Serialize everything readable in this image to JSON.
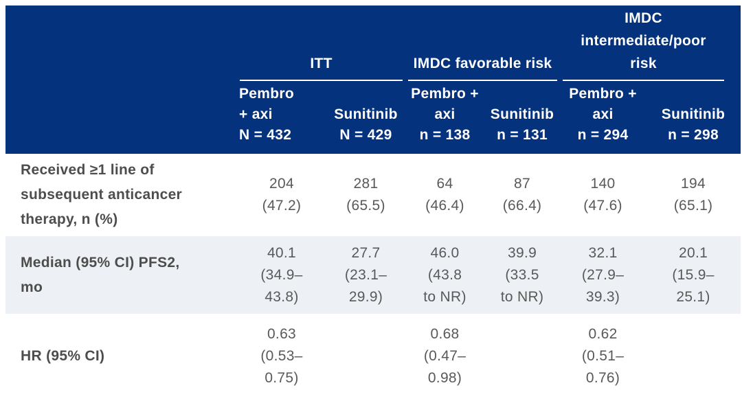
{
  "table": {
    "header": {
      "groups": [
        {
          "lines": [
            "ITT"
          ]
        },
        {
          "lines": [
            "IMDC favorable risk"
          ]
        },
        {
          "lines": [
            "IMDC",
            "intermediate/poor",
            "risk"
          ]
        }
      ],
      "columns": [
        {
          "lines": [
            "Pembro",
            "+ axi",
            "N = 432"
          ],
          "align": "left"
        },
        {
          "lines": [
            "Sunitinib",
            "N = 429"
          ],
          "align": "center"
        },
        {
          "lines": [
            "Pembro +",
            "axi",
            "n = 138"
          ],
          "align": "center"
        },
        {
          "lines": [
            "Sunitinib",
            "n = 131"
          ],
          "align": "center"
        },
        {
          "lines": [
            "Pembro +",
            "axi",
            "n = 294"
          ],
          "align": "center"
        },
        {
          "lines": [
            "Sunitinib",
            "n = 298"
          ],
          "align": "center"
        }
      ]
    },
    "rows": [
      {
        "label_lines": [
          "Received ≥1 line of",
          "subsequent anticancer",
          "therapy, n (%)"
        ],
        "shaded": false,
        "cells": [
          [
            "204",
            "(47.2)"
          ],
          [
            "281",
            "(65.5)"
          ],
          [
            "64",
            "(46.4)"
          ],
          [
            "87",
            "(66.4)"
          ],
          [
            "140",
            "(47.6)"
          ],
          [
            "194",
            "(65.1)"
          ]
        ]
      },
      {
        "label_lines": [
          "Median (95% CI) PFS2,",
          "mo"
        ],
        "shaded": true,
        "cells": [
          [
            "40.1",
            "(34.9–",
            "43.8)"
          ],
          [
            "27.7",
            "(23.1–",
            "29.9)"
          ],
          [
            "46.0",
            "(43.8",
            "to NR)"
          ],
          [
            "39.9",
            "(33.5",
            "to NR)"
          ],
          [
            "32.1",
            "(27.9–",
            "39.3)"
          ],
          [
            "20.1",
            "(15.9–",
            "25.1)"
          ]
        ]
      },
      {
        "label_lines": [
          "HR (95% CI)"
        ],
        "shaded": false,
        "cells": [
          [
            "0.63",
            "(0.53–",
            "0.75)"
          ],
          [],
          [
            "0.68",
            "(0.47–",
            "0.98)"
          ],
          [],
          [
            "0.62",
            "(0.51–",
            "0.76)"
          ],
          []
        ]
      }
    ]
  },
  "colors": {
    "header_bg": "#05327d",
    "header_text": "#ffffff",
    "underline": "#ffffff",
    "shaded_row_bg": "#edf0f4",
    "label_text": "#4d4d4d",
    "value_text": "#595959"
  }
}
